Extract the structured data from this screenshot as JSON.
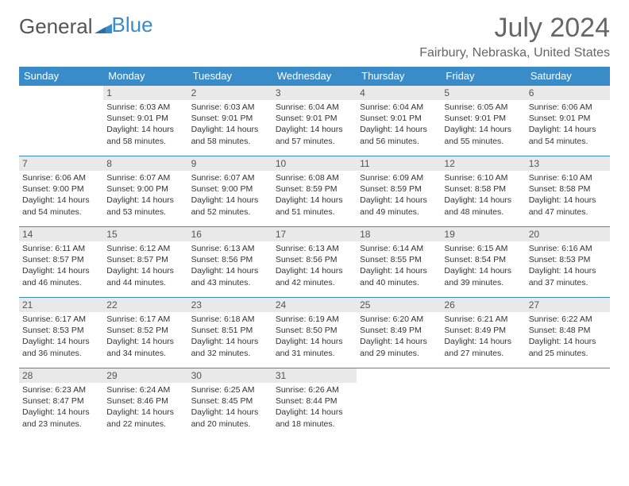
{
  "brand": {
    "part1": "General",
    "part2": "Blue"
  },
  "title": "July 2024",
  "location": "Fairbury, Nebraska, United States",
  "colors": {
    "header_bg": "#3a8cc9",
    "header_text": "#ffffff",
    "daynum_bg": "#e9e9e9",
    "border": "#3a8cc9",
    "text": "#333333",
    "title_text": "#666666"
  },
  "weekdays": [
    "Sunday",
    "Monday",
    "Tuesday",
    "Wednesday",
    "Thursday",
    "Friday",
    "Saturday"
  ],
  "weeks": [
    [
      {
        "day": "",
        "sunrise": "",
        "sunset": "",
        "daylight": ""
      },
      {
        "day": "1",
        "sunrise": "Sunrise: 6:03 AM",
        "sunset": "Sunset: 9:01 PM",
        "daylight": "Daylight: 14 hours and 58 minutes."
      },
      {
        "day": "2",
        "sunrise": "Sunrise: 6:03 AM",
        "sunset": "Sunset: 9:01 PM",
        "daylight": "Daylight: 14 hours and 58 minutes."
      },
      {
        "day": "3",
        "sunrise": "Sunrise: 6:04 AM",
        "sunset": "Sunset: 9:01 PM",
        "daylight": "Daylight: 14 hours and 57 minutes."
      },
      {
        "day": "4",
        "sunrise": "Sunrise: 6:04 AM",
        "sunset": "Sunset: 9:01 PM",
        "daylight": "Daylight: 14 hours and 56 minutes."
      },
      {
        "day": "5",
        "sunrise": "Sunrise: 6:05 AM",
        "sunset": "Sunset: 9:01 PM",
        "daylight": "Daylight: 14 hours and 55 minutes."
      },
      {
        "day": "6",
        "sunrise": "Sunrise: 6:06 AM",
        "sunset": "Sunset: 9:01 PM",
        "daylight": "Daylight: 14 hours and 54 minutes."
      }
    ],
    [
      {
        "day": "7",
        "sunrise": "Sunrise: 6:06 AM",
        "sunset": "Sunset: 9:00 PM",
        "daylight": "Daylight: 14 hours and 54 minutes."
      },
      {
        "day": "8",
        "sunrise": "Sunrise: 6:07 AM",
        "sunset": "Sunset: 9:00 PM",
        "daylight": "Daylight: 14 hours and 53 minutes."
      },
      {
        "day": "9",
        "sunrise": "Sunrise: 6:07 AM",
        "sunset": "Sunset: 9:00 PM",
        "daylight": "Daylight: 14 hours and 52 minutes."
      },
      {
        "day": "10",
        "sunrise": "Sunrise: 6:08 AM",
        "sunset": "Sunset: 8:59 PM",
        "daylight": "Daylight: 14 hours and 51 minutes."
      },
      {
        "day": "11",
        "sunrise": "Sunrise: 6:09 AM",
        "sunset": "Sunset: 8:59 PM",
        "daylight": "Daylight: 14 hours and 49 minutes."
      },
      {
        "day": "12",
        "sunrise": "Sunrise: 6:10 AM",
        "sunset": "Sunset: 8:58 PM",
        "daylight": "Daylight: 14 hours and 48 minutes."
      },
      {
        "day": "13",
        "sunrise": "Sunrise: 6:10 AM",
        "sunset": "Sunset: 8:58 PM",
        "daylight": "Daylight: 14 hours and 47 minutes."
      }
    ],
    [
      {
        "day": "14",
        "sunrise": "Sunrise: 6:11 AM",
        "sunset": "Sunset: 8:57 PM",
        "daylight": "Daylight: 14 hours and 46 minutes."
      },
      {
        "day": "15",
        "sunrise": "Sunrise: 6:12 AM",
        "sunset": "Sunset: 8:57 PM",
        "daylight": "Daylight: 14 hours and 44 minutes."
      },
      {
        "day": "16",
        "sunrise": "Sunrise: 6:13 AM",
        "sunset": "Sunset: 8:56 PM",
        "daylight": "Daylight: 14 hours and 43 minutes."
      },
      {
        "day": "17",
        "sunrise": "Sunrise: 6:13 AM",
        "sunset": "Sunset: 8:56 PM",
        "daylight": "Daylight: 14 hours and 42 minutes."
      },
      {
        "day": "18",
        "sunrise": "Sunrise: 6:14 AM",
        "sunset": "Sunset: 8:55 PM",
        "daylight": "Daylight: 14 hours and 40 minutes."
      },
      {
        "day": "19",
        "sunrise": "Sunrise: 6:15 AM",
        "sunset": "Sunset: 8:54 PM",
        "daylight": "Daylight: 14 hours and 39 minutes."
      },
      {
        "day": "20",
        "sunrise": "Sunrise: 6:16 AM",
        "sunset": "Sunset: 8:53 PM",
        "daylight": "Daylight: 14 hours and 37 minutes."
      }
    ],
    [
      {
        "day": "21",
        "sunrise": "Sunrise: 6:17 AM",
        "sunset": "Sunset: 8:53 PM",
        "daylight": "Daylight: 14 hours and 36 minutes."
      },
      {
        "day": "22",
        "sunrise": "Sunrise: 6:17 AM",
        "sunset": "Sunset: 8:52 PM",
        "daylight": "Daylight: 14 hours and 34 minutes."
      },
      {
        "day": "23",
        "sunrise": "Sunrise: 6:18 AM",
        "sunset": "Sunset: 8:51 PM",
        "daylight": "Daylight: 14 hours and 32 minutes."
      },
      {
        "day": "24",
        "sunrise": "Sunrise: 6:19 AM",
        "sunset": "Sunset: 8:50 PM",
        "daylight": "Daylight: 14 hours and 31 minutes."
      },
      {
        "day": "25",
        "sunrise": "Sunrise: 6:20 AM",
        "sunset": "Sunset: 8:49 PM",
        "daylight": "Daylight: 14 hours and 29 minutes."
      },
      {
        "day": "26",
        "sunrise": "Sunrise: 6:21 AM",
        "sunset": "Sunset: 8:49 PM",
        "daylight": "Daylight: 14 hours and 27 minutes."
      },
      {
        "day": "27",
        "sunrise": "Sunrise: 6:22 AM",
        "sunset": "Sunset: 8:48 PM",
        "daylight": "Daylight: 14 hours and 25 minutes."
      }
    ],
    [
      {
        "day": "28",
        "sunrise": "Sunrise: 6:23 AM",
        "sunset": "Sunset: 8:47 PM",
        "daylight": "Daylight: 14 hours and 23 minutes."
      },
      {
        "day": "29",
        "sunrise": "Sunrise: 6:24 AM",
        "sunset": "Sunset: 8:46 PM",
        "daylight": "Daylight: 14 hours and 22 minutes."
      },
      {
        "day": "30",
        "sunrise": "Sunrise: 6:25 AM",
        "sunset": "Sunset: 8:45 PM",
        "daylight": "Daylight: 14 hours and 20 minutes."
      },
      {
        "day": "31",
        "sunrise": "Sunrise: 6:26 AM",
        "sunset": "Sunset: 8:44 PM",
        "daylight": "Daylight: 14 hours and 18 minutes."
      },
      {
        "day": "",
        "sunrise": "",
        "sunset": "",
        "daylight": ""
      },
      {
        "day": "",
        "sunrise": "",
        "sunset": "",
        "daylight": ""
      },
      {
        "day": "",
        "sunrise": "",
        "sunset": "",
        "daylight": ""
      }
    ]
  ]
}
